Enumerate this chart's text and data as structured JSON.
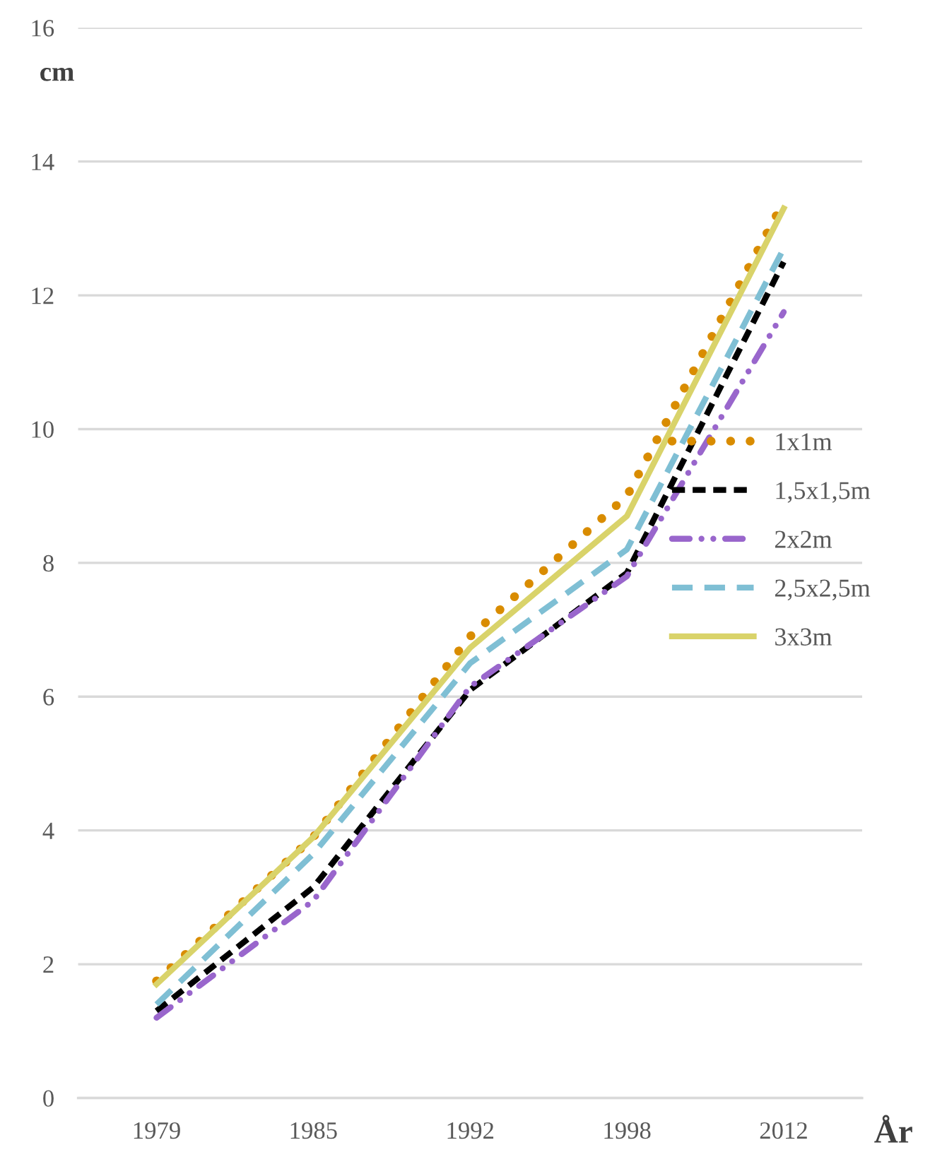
{
  "chart_data": {
    "type": "line",
    "xlabel": "År",
    "ylabel": "cm",
    "categories": [
      "1979",
      "1985",
      "1992",
      "1998",
      "2012"
    ],
    "series": [
      {
        "name": "1x1m",
        "color": "#d98c00",
        "line_style": "dotted",
        "values": [
          1.75,
          3.9,
          6.9,
          9.0,
          13.4
        ]
      },
      {
        "name": "1,5x1,5m",
        "color": "#000000",
        "line_style": "dashed",
        "values": [
          1.3,
          3.15,
          6.1,
          7.85,
          12.5
        ]
      },
      {
        "name": "2x2m",
        "color": "#9966cc",
        "line_style": "dashdot",
        "values": [
          1.2,
          2.95,
          6.15,
          7.8,
          11.75
        ]
      },
      {
        "name": "2,5x2,5m",
        "color": "#7fbfd4",
        "line_style": "longdash",
        "values": [
          1.4,
          3.65,
          6.5,
          8.2,
          12.7
        ]
      },
      {
        "name": "3x3m",
        "color": "#d9d36a",
        "line_style": "solid",
        "values": [
          1.7,
          3.9,
          6.73,
          8.7,
          13.3
        ]
      }
    ],
    "ylim": [
      0,
      16
    ],
    "yticks": [
      0,
      2,
      4,
      6,
      8,
      10,
      12,
      14,
      16
    ],
    "grid": "y",
    "legend": "right",
    "marker": "none"
  }
}
